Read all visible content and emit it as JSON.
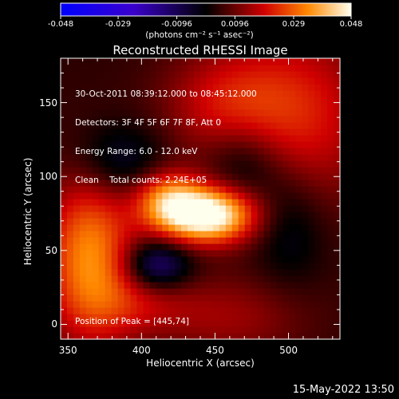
{
  "chart_data": {
    "type": "heatmap",
    "title": "Reconstructed RHESSI Image",
    "xlabel": "Heliocentric X (arcsec)",
    "ylabel": "Heliocentric Y (arcsec)",
    "xlim": [
      345,
      535
    ],
    "ylim": [
      -10,
      180
    ],
    "x_ticks": [
      "350",
      "400",
      "450",
      "500"
    ],
    "y_ticks": [
      "0",
      "50",
      "100",
      "150"
    ],
    "colorbar": {
      "ticks": [
        "-0.048",
        "-0.029",
        "-0.0096",
        "0.0096",
        "0.029",
        "0.048"
      ],
      "range": [
        -0.048,
        0.048
      ],
      "unit_label": "(photons cm⁻² s⁻¹ asec⁻²)"
    },
    "annotations": [
      "30-Oct-2011 08:39:12.000 to 08:45:12.000",
      "Detectors: 3F 4F 5F 6F 7F 8F, Att 0",
      "Energy Range: 6.0 - 12.0 keV",
      "Clean    Total counts: 2.24E+05"
    ],
    "peak_label": "Position of Peak = [445,74]",
    "peak": {
      "x": 445,
      "y": 74
    },
    "sources": [
      {
        "x": 445,
        "y": 74,
        "sx": 22,
        "sy": 13,
        "amp": 0.048
      },
      {
        "x": 418,
        "y": 85,
        "sx": 16,
        "sy": 14,
        "amp": 0.026
      },
      {
        "x": 365,
        "y": 45,
        "sx": 22,
        "sy": 40,
        "amp": 0.03
      },
      {
        "x": 505,
        "y": 140,
        "sx": 38,
        "sy": 45,
        "amp": 0.018
      },
      {
        "x": 455,
        "y": 150,
        "sx": 30,
        "sy": 25,
        "amp": 0.012
      },
      {
        "x": 460,
        "y": 5,
        "sx": 38,
        "sy": 20,
        "amp": 0.01
      },
      {
        "x": 400,
        "y": 15,
        "sx": 25,
        "sy": 15,
        "amp": 0.009
      },
      {
        "x": 410,
        "y": 40,
        "sx": 16,
        "sy": 12,
        "amp": -0.02
      },
      {
        "x": 385,
        "y": 110,
        "sx": 22,
        "sy": 18,
        "amp": -0.012
      },
      {
        "x": 470,
        "y": 110,
        "sx": 18,
        "sy": 20,
        "amp": -0.012
      },
      {
        "x": 500,
        "y": 70,
        "sx": 18,
        "sy": 30,
        "amp": -0.01
      }
    ]
  },
  "footer": {
    "timestamp": "15-May-2022 13:50"
  }
}
